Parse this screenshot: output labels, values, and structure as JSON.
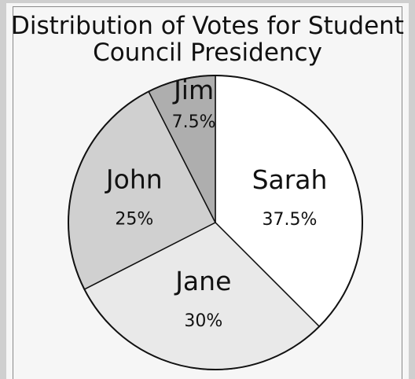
{
  "chart_data": {
    "type": "pie",
    "title_lines": [
      "Distribution of Votes for Student",
      "Council Presidency"
    ],
    "start": "12 o'clock",
    "direction": "clockwise",
    "slices": [
      {
        "label": "Sarah",
        "value": 37.5,
        "value_label": "37.5%",
        "color": "#ffffff"
      },
      {
        "label": "Jane",
        "value": 30,
        "value_label": "30%",
        "color": "#e9e9e9"
      },
      {
        "label": "John",
        "value": 25,
        "value_label": "25%",
        "color": "#d0d0d0"
      },
      {
        "label": "Jim",
        "value": 7.5,
        "value_label": "7.5%",
        "color": "#aeaeae"
      }
    ]
  }
}
